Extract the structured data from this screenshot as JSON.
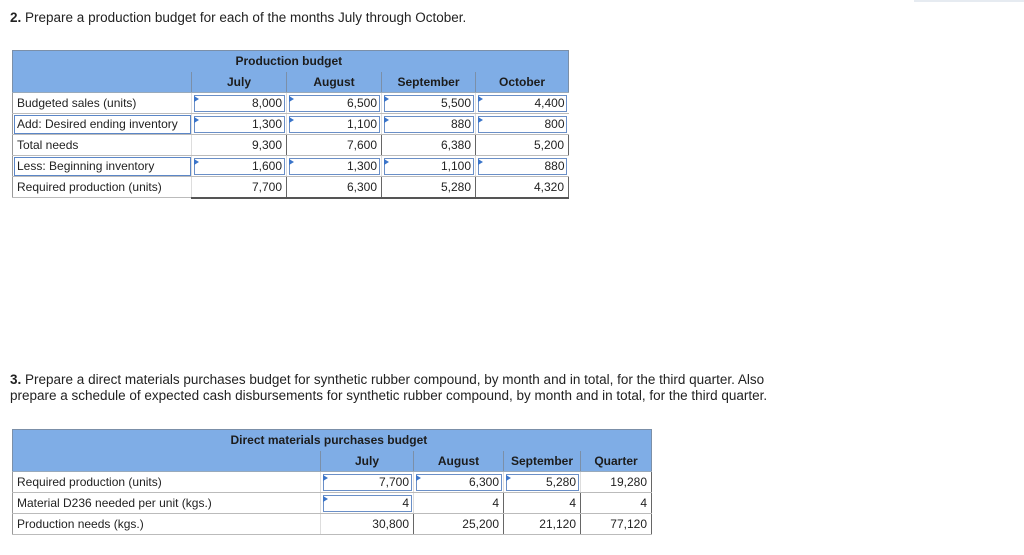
{
  "q2": {
    "number": "2.",
    "text": "Prepare a production budget for each of the months July through October."
  },
  "production_budget": {
    "title": "Production budget",
    "columns": [
      "July",
      "August",
      "September",
      "October"
    ],
    "rows": [
      {
        "label": "Budgeted sales (units)",
        "values": [
          "8,000",
          "6,500",
          "5,500",
          "4,400"
        ]
      },
      {
        "label": "Add: Desired ending inventory",
        "values": [
          "1,300",
          "1,100",
          "880",
          "800"
        ]
      },
      {
        "label": "Total needs",
        "values": [
          "9,300",
          "7,600",
          "6,380",
          "5,200"
        ]
      },
      {
        "label": "Less: Beginning inventory",
        "values": [
          "1,600",
          "1,300",
          "1,100",
          "880"
        ]
      },
      {
        "label": "Required production (units)",
        "values": [
          "7,700",
          "6,300",
          "5,280",
          "4,320"
        ]
      }
    ]
  },
  "q3": {
    "number": "3.",
    "line1": "Prepare a direct materials purchases budget for synthetic rubber compound, by month and in total, for the third quarter. Also",
    "line2": "prepare a schedule of expected cash disbursements for synthetic rubber compound, by month and in total, for the third quarter."
  },
  "purchases_budget": {
    "title": "Direct materials purchases budget",
    "columns": [
      "July",
      "August",
      "September",
      "Quarter"
    ],
    "rows": [
      {
        "label": "Required production (units)",
        "values": [
          "7,700",
          "6,300",
          "5,280",
          "19,280"
        ]
      },
      {
        "label": "Material D236 needed per unit (kgs.)",
        "values": [
          "4",
          "4",
          "4",
          "4"
        ]
      },
      {
        "label": "Production needs (kgs.)",
        "values": [
          "30,800",
          "25,200",
          "21,120",
          "77,120"
        ]
      }
    ]
  }
}
